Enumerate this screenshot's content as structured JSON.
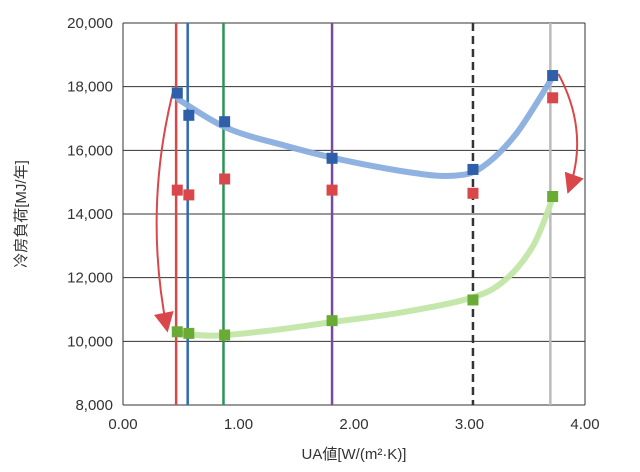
{
  "chart_data": {
    "type": "scatter",
    "xlabel": "UA値[W/(m²·K)]",
    "ylabel": "冷房負荷[MJ/年]",
    "xlim": [
      0,
      4
    ],
    "ylim": [
      8000,
      20000
    ],
    "grid": "horizontal",
    "x_ticks": [
      "0.00",
      "1.00",
      "2.00",
      "3.00",
      "4.00"
    ],
    "y_ticks": [
      "8,000",
      "10,000",
      "12,000",
      "14,000",
      "16,000",
      "18,000",
      "20,000"
    ],
    "vertical_lines": [
      {
        "x": 0.46,
        "color": "#d9474a",
        "style": "solid"
      },
      {
        "x": 0.56,
        "color": "#2e69b3",
        "style": "solid"
      },
      {
        "x": 0.87,
        "color": "#2a9357",
        "style": "solid"
      },
      {
        "x": 1.81,
        "color": "#7a4a9c",
        "style": "solid"
      },
      {
        "x": 3.03,
        "color": "#333333",
        "style": "dashed"
      },
      {
        "x": 3.7,
        "color": "#bbbbbb",
        "style": "solid"
      }
    ],
    "series": [
      {
        "color": "#2e5fa8",
        "points": [
          [
            0.47,
            17800
          ],
          [
            0.57,
            17100
          ],
          [
            0.88,
            16900
          ],
          [
            1.81,
            15750
          ],
          [
            3.03,
            15400
          ],
          [
            3.72,
            18350
          ]
        ]
      },
      {
        "color": "#d9474a",
        "points": [
          [
            0.47,
            14750
          ],
          [
            0.57,
            14600
          ],
          [
            0.88,
            15100
          ],
          [
            1.81,
            14750
          ],
          [
            3.03,
            14650
          ],
          [
            3.72,
            17650
          ]
        ]
      },
      {
        "color": "#6aab35",
        "points": [
          [
            0.47,
            10300
          ],
          [
            0.57,
            10250
          ],
          [
            0.88,
            10200
          ],
          [
            1.81,
            10650
          ],
          [
            3.03,
            11300
          ],
          [
            3.72,
            14550
          ]
        ]
      }
    ],
    "curves": [
      {
        "color": "#8aaede",
        "points": [
          [
            0.48,
            17600
          ],
          [
            0.9,
            16700
          ],
          [
            1.4,
            16150
          ],
          [
            1.9,
            15700
          ],
          [
            2.5,
            15300
          ],
          [
            2.85,
            15200
          ],
          [
            3.1,
            15450
          ],
          [
            3.4,
            16500
          ],
          [
            3.72,
            18300
          ]
        ]
      },
      {
        "color": "#c3e6a6",
        "points": [
          [
            0.5,
            10250
          ],
          [
            0.8,
            10180
          ],
          [
            1.3,
            10350
          ],
          [
            1.8,
            10600
          ],
          [
            2.4,
            10900
          ],
          [
            3.0,
            11350
          ],
          [
            3.3,
            11900
          ],
          [
            3.55,
            13000
          ],
          [
            3.72,
            14500
          ]
        ]
      }
    ],
    "arrows": [
      {
        "from": [
          0.43,
          17800
        ],
        "to": [
          0.38,
          10400
        ],
        "bend": "left",
        "color": "#d9474a"
      },
      {
        "from": [
          3.77,
          18400
        ],
        "to": [
          3.86,
          14750
        ],
        "bend": "right",
        "color": "#d9474a"
      }
    ]
  }
}
